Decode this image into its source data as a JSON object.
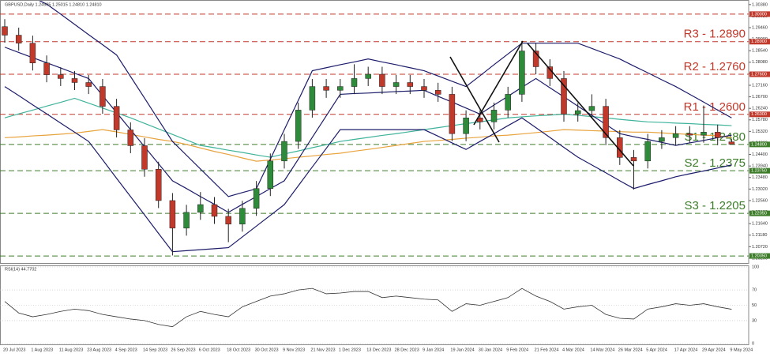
{
  "chart_data": {
    "type": "candlestick",
    "header": "GBPUSD,Daily  1.24905 1.25015 1.24810 1.24810",
    "categories": [
      "20 Jul 2023",
      null,
      "1 Aug 2023",
      null,
      "11 Aug 2023",
      null,
      "23 Aug 2023",
      null,
      "4 Sep 2023",
      null,
      "14 Sep 2023",
      null,
      "26 Sep 2023",
      null,
      "6 Oct 2023",
      null,
      "18 Oct 2023",
      null,
      "30 Oct 2023",
      null,
      "9 Nov 2023",
      null,
      "21 Nov 2023",
      null,
      "1 Dec 2023",
      null,
      "13 Dec 2023",
      null,
      "28 Dec 2023",
      null,
      "9 Jan 2024",
      null,
      "19 Jan 2024",
      null,
      "30 Jan 2024",
      null,
      "9 Feb 2024",
      null,
      "21 Feb 2024",
      null,
      "4 Mar 2024",
      null,
      "14 Mar 2024",
      null,
      "26 Mar 2024",
      null,
      "5 Apr 2024",
      null,
      "17 Apr 2024",
      null,
      "29 Apr 2024",
      null,
      "9 May 2024"
    ],
    "open": [
      1.295,
      1.2916,
      1.2884,
      1.2805,
      1.2758,
      1.2743,
      1.2727,
      1.2711,
      1.2632,
      1.2538,
      1.2475,
      1.2381,
      1.2256,
      1.2146,
      1.2209,
      1.224,
      1.2193,
      1.2162,
      1.2225,
      1.2304,
      1.2414,
      1.2492,
      1.2617,
      1.2711,
      1.2696,
      1.2711,
      1.2743,
      1.276,
      1.2711,
      1.2727,
      1.2711,
      1.2696,
      1.268,
      1.2523,
      1.2586,
      1.257,
      1.2617,
      1.268,
      1.2853,
      1.279,
      1.2743,
      1.2601,
      1.2615,
      1.2632,
      1.2507,
      1.2428,
      1.2414,
      1.2492,
      1.2507,
      1.2523,
      1.2517,
      1.2529,
      1.24905
    ],
    "high": [
      1.298,
      1.2946,
      1.2914,
      1.2835,
      1.2788,
      1.2773,
      1.2757,
      1.2741,
      1.2662,
      1.2568,
      1.2505,
      1.2411,
      1.2286,
      1.2239,
      1.229,
      1.227,
      1.2223,
      1.2255,
      1.2334,
      1.2444,
      1.2522,
      1.2647,
      1.2741,
      1.2741,
      1.2741,
      1.28,
      1.279,
      1.279,
      1.2757,
      1.2757,
      1.2741,
      1.2726,
      1.271,
      1.2616,
      1.2616,
      1.2647,
      1.271,
      1.2893,
      1.2883,
      1.282,
      1.2773,
      1.2645,
      1.268,
      1.2662,
      1.2537,
      1.2458,
      1.2522,
      1.2537,
      1.2553,
      1.2553,
      1.2635,
      1.2559,
      1.25015
    ],
    "low": [
      1.2886,
      1.2854,
      1.2775,
      1.2728,
      1.2713,
      1.2697,
      1.2681,
      1.2602,
      1.2508,
      1.2445,
      1.2351,
      1.2226,
      1.2037,
      1.2116,
      1.2179,
      1.2163,
      1.209,
      1.2132,
      1.2195,
      1.2274,
      1.2384,
      1.2462,
      1.2587,
      1.2666,
      1.2666,
      1.2681,
      1.2713,
      1.2681,
      1.2681,
      1.2681,
      1.2666,
      1.265,
      1.2493,
      1.2493,
      1.254,
      1.254,
      1.2587,
      1.265,
      1.276,
      1.2713,
      1.2571,
      1.2571,
      1.2585,
      1.2477,
      1.2398,
      1.23,
      1.2384,
      1.2462,
      1.2477,
      1.2487,
      1.2487,
      1.2477,
      1.2481
    ],
    "close": [
      1.2916,
      1.2884,
      1.2805,
      1.2758,
      1.2743,
      1.2727,
      1.2711,
      1.2632,
      1.2538,
      1.2475,
      1.2381,
      1.2256,
      1.2146,
      1.2209,
      1.224,
      1.2193,
      1.2162,
      1.2225,
      1.2304,
      1.2414,
      1.2492,
      1.2617,
      1.2711,
      1.2696,
      1.2711,
      1.2743,
      1.276,
      1.2711,
      1.2727,
      1.2711,
      1.2696,
      1.268,
      1.2523,
      1.2586,
      1.257,
      1.2617,
      1.268,
      1.2853,
      1.279,
      1.2743,
      1.2601,
      1.2615,
      1.2632,
      1.2507,
      1.2428,
      1.2414,
      1.2492,
      1.2507,
      1.2523,
      1.2517,
      1.2529,
      1.2507,
      1.2481
    ],
    "up_color": "#2e8b3a",
    "down_color": "#c0392b",
    "ylim": [
      1.201,
      1.305
    ],
    "yticks": [
      {
        "value": 1.3038,
        "label": "1.30380"
      },
      {
        "value": 1.2992,
        "label": "1.29920"
      },
      {
        "value": 1.2946,
        "label": "1.29460"
      },
      {
        "value": 1.29,
        "label": "1.29000"
      },
      {
        "value": 1.2854,
        "label": "1.28540"
      },
      {
        "value": 1.2808,
        "label": "1.28080"
      },
      {
        "value": 1.2762,
        "label": "1.27620"
      },
      {
        "value": 1.2716,
        "label": "1.27160"
      },
      {
        "value": 1.267,
        "label": "1.26700"
      },
      {
        "value": 1.2624,
        "label": "1.26240"
      },
      {
        "value": 1.2578,
        "label": "1.25780"
      },
      {
        "value": 1.2532,
        "label": "1.25320"
      },
      {
        "value": 1.2486,
        "label": "1.24860"
      },
      {
        "value": 1.244,
        "label": "1.24400"
      },
      {
        "value": 1.2394,
        "label": "1.23940"
      },
      {
        "value": 1.2348,
        "label": "1.23480"
      },
      {
        "value": 1.2302,
        "label": "1.23020"
      },
      {
        "value": 1.2256,
        "label": "1.22560"
      },
      {
        "value": 1.221,
        "label": "1.22100"
      },
      {
        "value": 1.2164,
        "label": "1.21640"
      },
      {
        "value": 1.2118,
        "label": "1.21180"
      },
      {
        "value": 1.2072,
        "label": "1.20720"
      },
      {
        "value": 1.2026,
        "label": "1.20260"
      }
    ],
    "levels": [
      {
        "value": 1.3,
        "label": "1.30000",
        "color": "#c0392b"
      },
      {
        "value": 1.289,
        "label": "1.28900",
        "color": "#c0392b",
        "text": "R3 - 1.2890"
      },
      {
        "value": 1.276,
        "label": "1.27600",
        "color": "#c0392b",
        "text": "R2 - 1.2760"
      },
      {
        "value": 1.26,
        "label": "1.26000",
        "color": "#c0392b",
        "text": "R1 - 1.2600"
      },
      {
        "value": 1.248,
        "label": "1.24800",
        "color": "#3d7d2a",
        "text": "S1 - 1.2480"
      },
      {
        "value": 1.2375,
        "label": "1.23750",
        "color": "#3d7d2a",
        "text": "S2 - 1.2375"
      },
      {
        "value": 1.2205,
        "label": "1.22050",
        "color": "#3d7d2a",
        "text": "S3 - 1.2205"
      },
      {
        "value": 1.2035,
        "label": "1.20350",
        "color": "#3d7d2a"
      }
    ],
    "overlays": [
      {
        "color": "#e8a33d",
        "values": [
          1.2507,
          1.251,
          1.2514,
          1.2517,
          1.2521,
          1.2525,
          1.2532,
          1.2539,
          1.253,
          1.252,
          1.251,
          1.25,
          1.2492,
          1.248,
          1.2466,
          1.2452,
          1.244,
          1.2426,
          1.2413,
          1.2418,
          1.2423,
          1.2429,
          1.2434,
          1.244,
          1.2445,
          1.2453,
          1.246,
          1.2468,
          1.2476,
          1.2484,
          1.2492,
          1.2496,
          1.25,
          1.2505,
          1.2509,
          1.2514,
          1.2517,
          1.2522,
          1.2527,
          1.2533,
          1.2539,
          1.2537,
          1.2535,
          1.2533,
          1.2531,
          1.2529,
          1.2529,
          1.2526,
          1.2523,
          1.252,
          1.2517,
          1.2515,
          1.2507
        ]
      },
      {
        "color": "#3fb39b",
        "values": [
          1.2586,
          1.2602,
          1.2617,
          1.2633,
          1.2648,
          1.2664,
          1.2645,
          1.2625,
          1.2606,
          1.2586,
          1.2564,
          1.2542,
          1.252,
          1.2498,
          1.2476,
          1.2467,
          1.2457,
          1.2448,
          1.2438,
          1.2429,
          1.2442,
          1.2454,
          1.2467,
          1.2479,
          1.2492,
          1.25,
          1.2508,
          1.2516,
          1.2523,
          1.2531,
          1.2539,
          1.2547,
          1.2555,
          1.2563,
          1.257,
          1.2578,
          1.2586,
          1.259,
          1.2594,
          1.2597,
          1.2601,
          1.2596,
          1.2591,
          1.2586,
          1.258,
          1.2575,
          1.257,
          1.2568,
          1.2565,
          1.2563,
          1.256,
          1.2558,
          1.2555
        ]
      },
      {
        "color": "#1c1c6b",
        "values": [
          1.312,
          1.3093,
          1.3067,
          1.304,
          1.3,
          1.2959,
          1.2918,
          1.2878,
          1.2837,
          1.2751,
          1.2665,
          1.2578,
          1.2492,
          1.2437,
          1.2382,
          1.2327,
          1.2272,
          1.2288,
          1.2303,
          1.2421,
          1.2539,
          1.2656,
          1.2774,
          1.2786,
          1.2798,
          1.2809,
          1.2821,
          1.2809,
          1.2798,
          1.2786,
          1.2774,
          1.2753,
          1.2732,
          1.2711,
          1.2754,
          1.2798,
          1.2841,
          1.2884,
          1.2884,
          1.2884,
          1.2884,
          1.2884,
          1.2863,
          1.2842,
          1.2821,
          1.2793,
          1.2766,
          1.2738,
          1.2711,
          1.268,
          1.2649,
          1.2617,
          1.2586
        ]
      },
      {
        "color": "#1c1c6b",
        "values": [
          1.2868,
          1.2847,
          1.2826,
          1.2806,
          1.2785,
          1.2764,
          1.2743,
          1.2675,
          1.2607,
          1.2539,
          1.2471,
          1.2403,
          1.2335,
          1.2304,
          1.2272,
          1.2241,
          1.2209,
          1.2241,
          1.2272,
          1.2304,
          1.2335,
          1.2421,
          1.2508,
          1.2594,
          1.268,
          1.2683,
          1.2685,
          1.2688,
          1.2691,
          1.2693,
          1.2696,
          1.2672,
          1.2649,
          1.2625,
          1.2601,
          1.2637,
          1.2672,
          1.2708,
          1.2743,
          1.2706,
          1.267,
          1.2633,
          1.2596,
          1.256,
          1.2523,
          1.2511,
          1.25,
          1.2488,
          1.2476,
          1.2486,
          1.2496,
          1.2507,
          1.2517
        ]
      },
      {
        "color": "#1c1c6b",
        "values": [
          1.2711,
          1.2675,
          1.2638,
          1.2602,
          1.2565,
          1.2529,
          1.2492,
          1.2419,
          1.2345,
          1.2272,
          1.2199,
          1.2125,
          1.2052,
          1.2056,
          1.206,
          1.2064,
          1.2068,
          1.2111,
          1.2154,
          1.2197,
          1.224,
          1.2315,
          1.239,
          1.2464,
          1.2539,
          1.2539,
          1.2539,
          1.2539,
          1.2539,
          1.2539,
          1.2539,
          1.2513,
          1.2486,
          1.246,
          1.2492,
          1.2523,
          1.2555,
          1.2586,
          1.2547,
          1.2508,
          1.2468,
          1.2429,
          1.2398,
          1.2367,
          1.2335,
          1.2304,
          1.232,
          1.2335,
          1.2351,
          1.2363,
          1.2374,
          1.2386,
          1.2398
        ]
      }
    ],
    "rsi": {
      "title": "RSI(14) 44.7702",
      "color": "#333333",
      "values": [
        55,
        40,
        35,
        38,
        42,
        45,
        43,
        38,
        35,
        32,
        30,
        25,
        22,
        35,
        42,
        38,
        35,
        48,
        55,
        62,
        65,
        70,
        72,
        65,
        66,
        68,
        68,
        60,
        62,
        60,
        58,
        57,
        42,
        52,
        50,
        55,
        60,
        72,
        62,
        55,
        45,
        48,
        50,
        38,
        33,
        32,
        45,
        48,
        52,
        50,
        52,
        48,
        44.7702
      ],
      "ylim": [
        0,
        100
      ],
      "yticks": [
        0,
        30,
        50,
        70,
        100
      ]
    }
  }
}
